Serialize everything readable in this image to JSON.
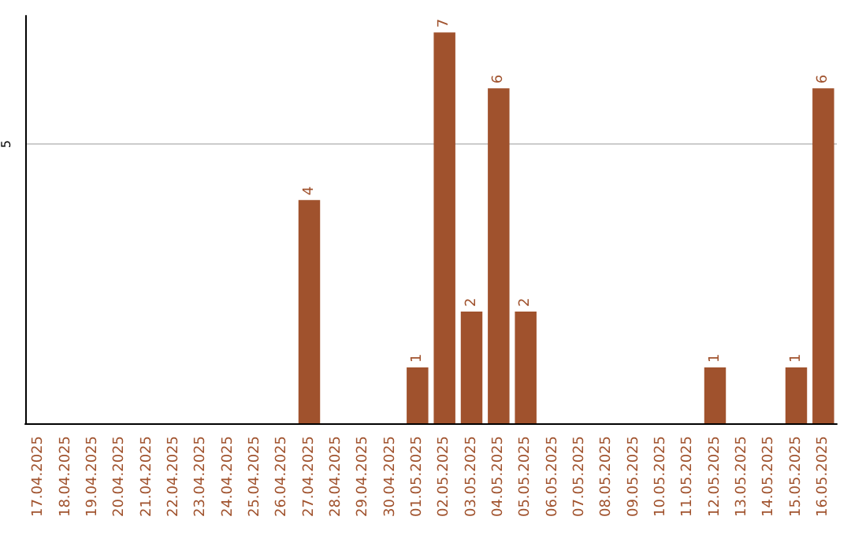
{
  "chart_data": {
    "type": "bar",
    "categories": [
      "17.04.2025",
      "18.04.2025",
      "19.04.2025",
      "20.04.2025",
      "21.04.2025",
      "22.04.2025",
      "23.04.2025",
      "24.04.2025",
      "25.04.2025",
      "26.04.2025",
      "27.04.2025",
      "28.04.2025",
      "29.04.2025",
      "30.04.2025",
      "01.05.2025",
      "02.05.2025",
      "03.05.2025",
      "04.05.2025",
      "05.05.2025",
      "06.05.2025",
      "07.05.2025",
      "08.05.2025",
      "09.05.2025",
      "10.05.2025",
      "11.05.2025",
      "12.05.2025",
      "13.05.2025",
      "14.05.2025",
      "15.05.2025",
      "16.05.2025"
    ],
    "values": [
      0,
      0,
      0,
      0,
      0,
      0,
      0,
      0,
      0,
      0,
      4,
      0,
      0,
      0,
      1,
      7,
      2,
      6,
      2,
      0,
      0,
      0,
      0,
      0,
      0,
      1,
      0,
      0,
      1,
      6
    ],
    "value_labels": [
      null,
      null,
      null,
      null,
      null,
      null,
      null,
      null,
      null,
      null,
      "4",
      null,
      null,
      null,
      "1",
      "7",
      "2",
      "6",
      "2",
      null,
      null,
      null,
      null,
      null,
      null,
      "1",
      null,
      null,
      "1",
      "6"
    ],
    "color": "#a0522d",
    "ylim": [
      0,
      7.3
    ],
    "yticks": [
      5
    ],
    "grid": "y"
  }
}
